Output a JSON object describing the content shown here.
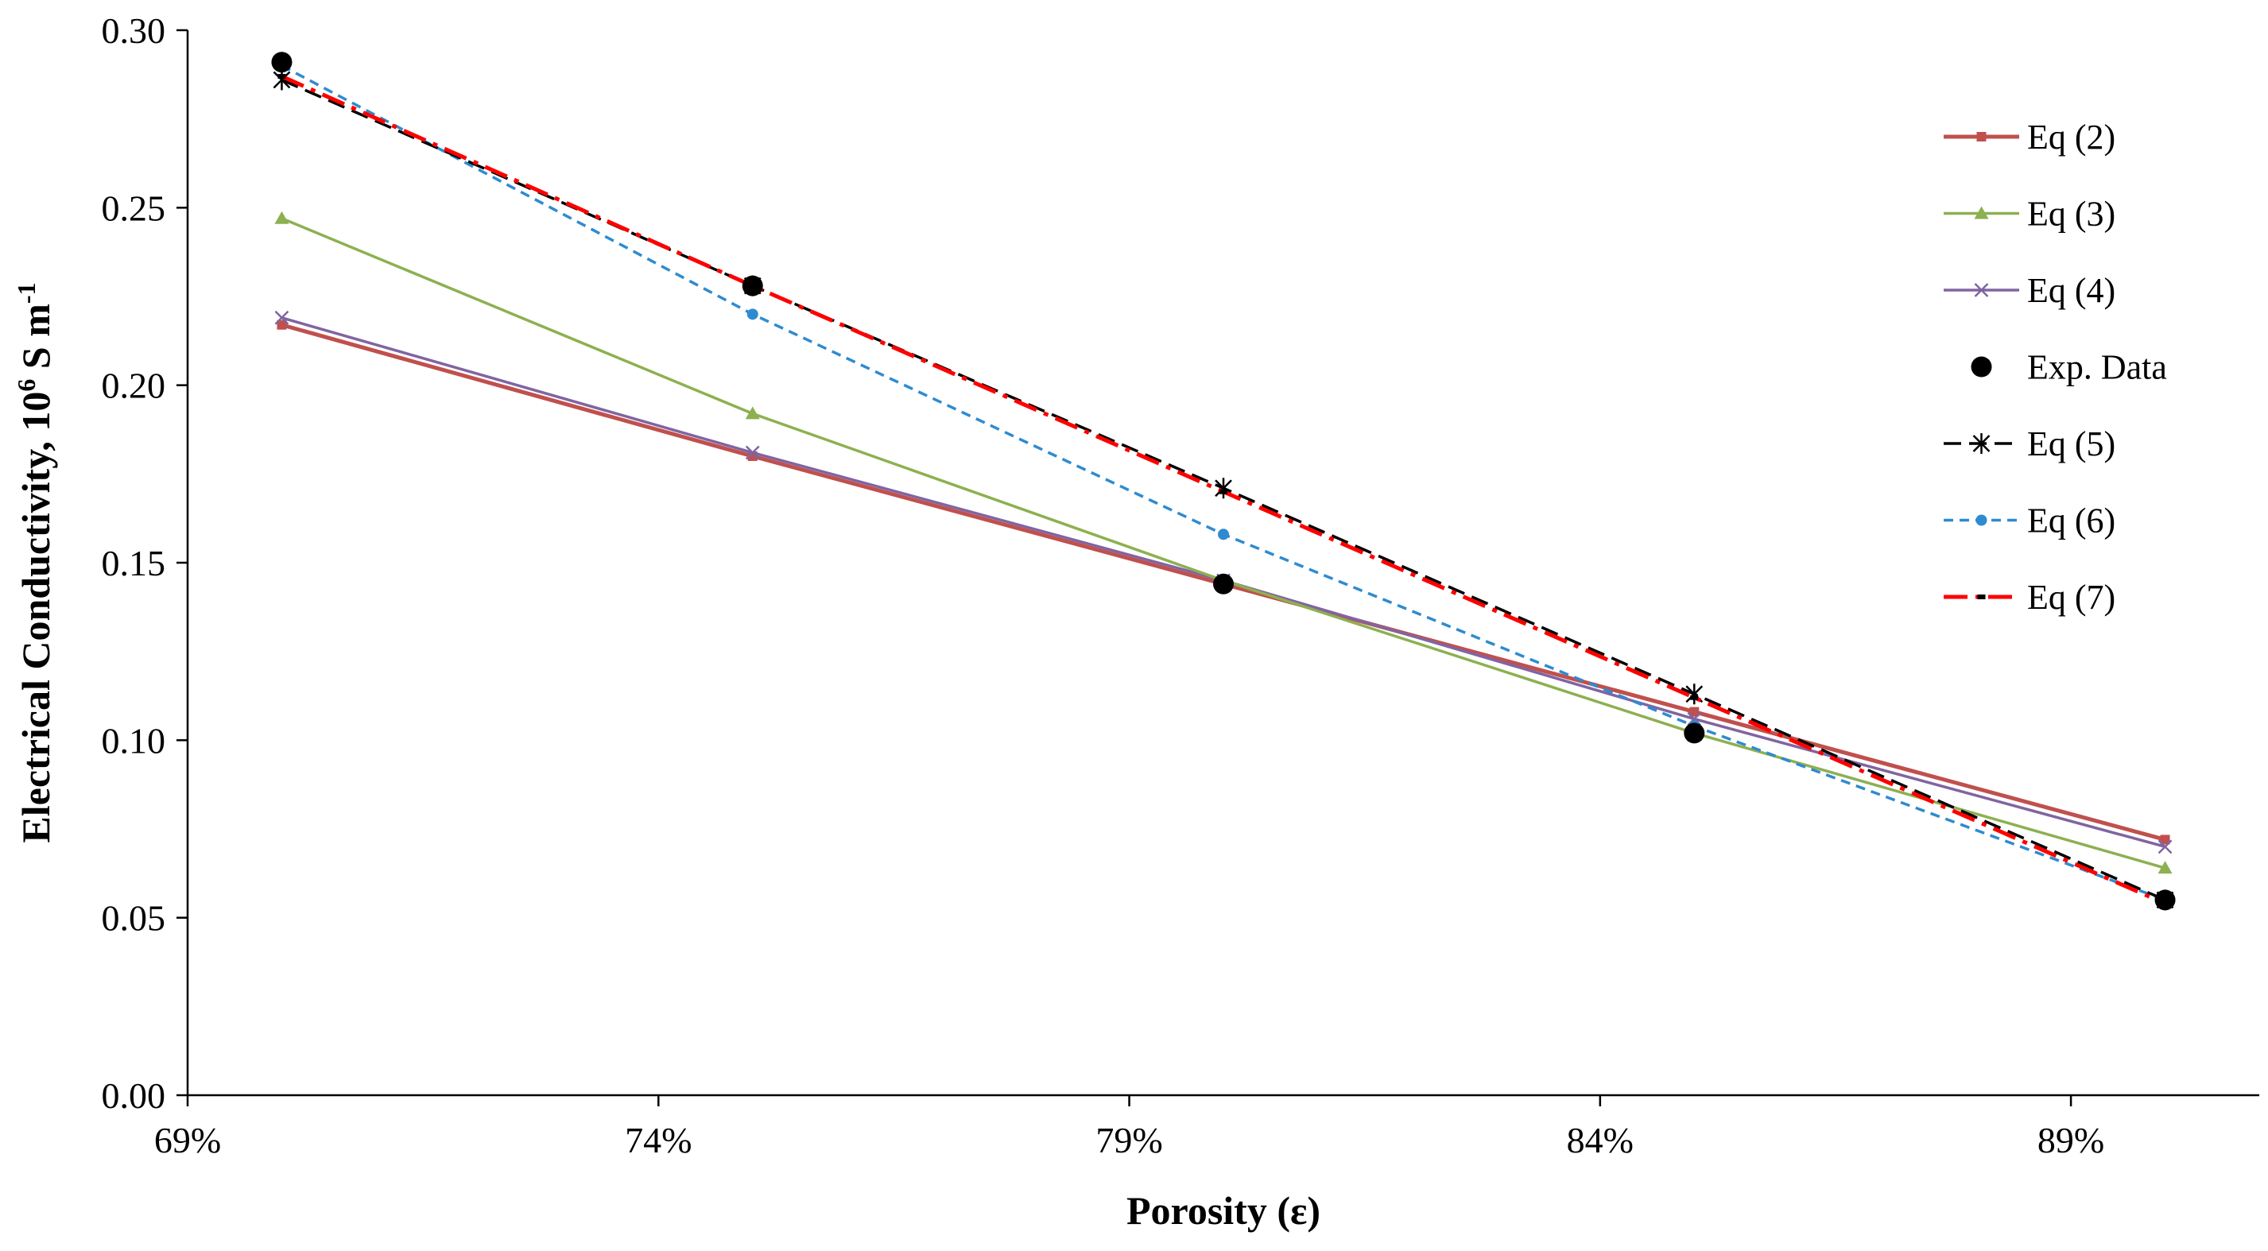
{
  "chart_data": {
    "type": "line",
    "title": "",
    "xlabel": "Porosity (ε)",
    "ylabel_main": "Electrical Conductivity,  10",
    "ylabel_sup1": "6",
    "ylabel_mid": " S m",
    "ylabel_sup2": "-1",
    "xlim": [
      0.69,
      0.91
    ],
    "ylim": [
      0,
      0.3
    ],
    "x_ticks": [
      0.69,
      0.74,
      0.79,
      0.84,
      0.89
    ],
    "x_tick_labels": [
      "69%",
      "74%",
      "79%",
      "84%",
      "89%"
    ],
    "y_ticks": [
      0,
      0.05,
      0.1,
      0.15,
      0.2,
      0.25,
      0.3
    ],
    "y_tick_labels": [
      "0.00",
      "0.05",
      "0.10",
      "0.15",
      "0.20",
      "0.25",
      "0.30"
    ],
    "legend_position": "right",
    "x": [
      0.7,
      0.75,
      0.8,
      0.85,
      0.9
    ],
    "series": [
      {
        "name": "Eq (2)",
        "values": [
          0.217,
          0.18,
          0.144,
          0.108,
          0.072
        ],
        "color": "#C0504D",
        "dash": "",
        "marker": "square",
        "width": 5
      },
      {
        "name": "Eq (3)",
        "values": [
          0.247,
          0.192,
          0.145,
          0.102,
          0.064
        ],
        "color": "#8DB050",
        "dash": "",
        "marker": "triangle",
        "width": 3.5
      },
      {
        "name": "Eq (4)",
        "values": [
          0.219,
          0.181,
          0.145,
          0.106,
          0.07
        ],
        "color": "#8064A2",
        "dash": "",
        "marker": "x",
        "width": 3.5
      },
      {
        "name": "Exp. Data",
        "values": [
          0.291,
          0.228,
          0.144,
          0.102,
          0.055
        ],
        "color": "#000000",
        "dash": "none",
        "marker": "dot",
        "width": 0
      },
      {
        "name": "Eq (5)",
        "values": [
          0.286,
          0.228,
          0.171,
          0.113,
          0.055
        ],
        "color": "#000000",
        "dash": "22 10",
        "marker": "star",
        "width": 3.5
      },
      {
        "name": "Eq (6)",
        "values": [
          0.29,
          0.22,
          0.158,
          0.104,
          0.055
        ],
        "color": "#2E8BD0",
        "dash": "12 8",
        "marker": "circle",
        "width": 3.5
      },
      {
        "name": "Eq (7)",
        "values": [
          0.287,
          0.228,
          0.17,
          0.112,
          0.054
        ],
        "color": "#FF0000",
        "dash": "30 10 6 10",
        "marker": "dash",
        "width": 5
      }
    ]
  }
}
